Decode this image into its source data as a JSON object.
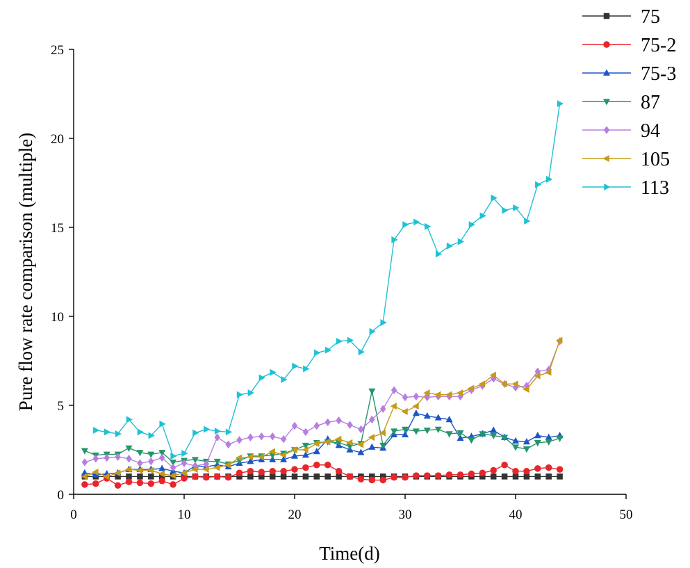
{
  "chart_data": {
    "type": "line",
    "title": "",
    "xlabel": "Time(d)",
    "ylabel": "Pure flow rate comparison (multiple)",
    "xlim": [
      0,
      50
    ],
    "ylim": [
      0,
      25
    ],
    "xticks": [
      0,
      10,
      20,
      30,
      40,
      50
    ],
    "yticks": [
      0,
      5,
      10,
      15,
      20,
      25
    ],
    "xtick_labels": [
      "0",
      "10",
      "20",
      "30",
      "40",
      "50"
    ],
    "ytick_labels": [
      "0",
      "5",
      "10",
      "15",
      "20",
      "25"
    ],
    "grid": false,
    "legend_position": "top-right",
    "x": [
      1,
      2,
      3,
      4,
      5,
      6,
      7,
      8,
      9,
      10,
      11,
      12,
      13,
      14,
      15,
      16,
      17,
      18,
      19,
      20,
      21,
      22,
      23,
      24,
      25,
      26,
      27,
      28,
      29,
      30,
      31,
      32,
      33,
      34,
      35,
      36,
      37,
      38,
      39,
      40,
      41,
      42,
      43,
      44
    ],
    "series": [
      {
        "name": "75",
        "color": "#333333",
        "marker": "square",
        "values": [
          1,
          1,
          1,
          1,
          1,
          1,
          1,
          1,
          1,
          1,
          1,
          1,
          1,
          1,
          1,
          1,
          1,
          1,
          1,
          1,
          1,
          1,
          1,
          1,
          1,
          1,
          1,
          1,
          1,
          1,
          1,
          1,
          1,
          1,
          1,
          1,
          1,
          1,
          1,
          1,
          1,
          1,
          1,
          1
        ]
      },
      {
        "name": "75-2",
        "color": "#e8252a",
        "marker": "circle",
        "values": [
          0.55,
          0.6,
          0.9,
          0.5,
          0.7,
          0.65,
          0.6,
          0.75,
          0.55,
          0.9,
          1.0,
          0.95,
          1.0,
          0.95,
          1.2,
          1.3,
          1.25,
          1.3,
          1.3,
          1.4,
          1.5,
          1.65,
          1.65,
          1.3,
          1.0,
          0.85,
          0.8,
          0.8,
          0.95,
          0.95,
          1.05,
          1.05,
          1.05,
          1.1,
          1.1,
          1.15,
          1.2,
          1.35,
          1.65,
          1.3,
          1.3,
          1.45,
          1.5,
          1.4
        ]
      },
      {
        "name": "75-3",
        "color": "#1c55c5",
        "marker": "triangle-up",
        "values": [
          1.2,
          1.1,
          1.15,
          1.2,
          1.4,
          1.4,
          1.4,
          1.45,
          1.3,
          1.2,
          1.6,
          1.55,
          1.65,
          1.55,
          1.75,
          1.85,
          1.95,
          1.95,
          1.95,
          2.15,
          2.2,
          2.4,
          3.1,
          2.75,
          2.5,
          2.35,
          2.65,
          2.6,
          3.35,
          3.35,
          4.55,
          4.4,
          4.3,
          4.2,
          3.15,
          3.25,
          3.4,
          3.6,
          3.2,
          3.0,
          2.95,
          3.3,
          3.2,
          3.3
        ]
      },
      {
        "name": "87",
        "color": "#25956a",
        "marker": "triangle-down",
        "values": [
          2.45,
          2.2,
          2.25,
          2.25,
          2.6,
          2.35,
          2.25,
          2.35,
          1.8,
          1.9,
          1.95,
          1.85,
          1.85,
          1.7,
          1.9,
          2.15,
          2.15,
          2.2,
          2.3,
          2.5,
          2.75,
          2.9,
          2.95,
          2.9,
          2.7,
          2.85,
          5.8,
          2.75,
          3.55,
          3.65,
          3.55,
          3.6,
          3.65,
          3.4,
          3.45,
          3.05,
          3.4,
          3.3,
          3.2,
          2.65,
          2.55,
          2.9,
          2.95,
          3.15
        ]
      },
      {
        "name": "94",
        "color": "#b77ee0",
        "marker": "diamond",
        "values": [
          1.8,
          2.0,
          2.05,
          2.1,
          2.0,
          1.75,
          1.85,
          2.05,
          1.5,
          1.75,
          1.6,
          1.7,
          3.2,
          2.8,
          3.05,
          3.2,
          3.25,
          3.25,
          3.1,
          3.85,
          3.5,
          3.85,
          4.05,
          4.15,
          3.9,
          3.65,
          4.2,
          4.8,
          5.85,
          5.45,
          5.5,
          5.45,
          5.5,
          5.5,
          5.5,
          5.85,
          6.1,
          6.5,
          6.2,
          6.0,
          6.1,
          6.9,
          7.0,
          8.6
        ]
      },
      {
        "name": "105",
        "color": "#c79a1a",
        "marker": "triangle-left",
        "values": [
          1.0,
          1.25,
          1.0,
          1.2,
          1.4,
          1.35,
          1.35,
          1.15,
          1.05,
          1.2,
          1.4,
          1.4,
          1.5,
          1.65,
          2.05,
          2.1,
          2.1,
          2.4,
          2.2,
          2.5,
          2.5,
          2.85,
          2.95,
          3.1,
          2.9,
          2.8,
          3.2,
          3.45,
          4.95,
          4.65,
          4.95,
          5.7,
          5.6,
          5.6,
          5.7,
          5.95,
          6.2,
          6.7,
          6.2,
          6.2,
          5.9,
          6.65,
          6.85,
          8.65
        ]
      },
      {
        "name": "113",
        "color": "#1fc2d4",
        "marker": "triangle-right",
        "values": [
          null,
          3.6,
          3.5,
          3.4,
          4.2,
          3.5,
          3.3,
          3.95,
          2.15,
          2.3,
          3.45,
          3.65,
          3.55,
          3.5,
          5.6,
          5.7,
          6.55,
          6.85,
          6.45,
          7.2,
          7.05,
          7.95,
          8.1,
          8.6,
          8.65,
          8.0,
          9.15,
          9.65,
          14.3,
          15.15,
          15.3,
          15.05,
          13.5,
          13.95,
          14.2,
          15.15,
          15.65,
          16.65,
          15.95,
          16.1,
          15.35,
          17.4,
          17.7,
          21.95
        ]
      }
    ]
  }
}
